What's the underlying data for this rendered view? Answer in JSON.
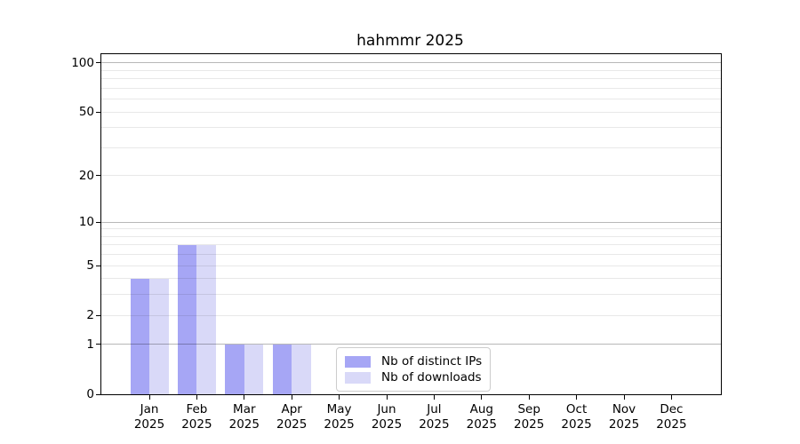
{
  "chart_data": {
    "type": "bar",
    "title": "hahmmr 2025",
    "categories": [
      "Jan",
      "Feb",
      "Mar",
      "Apr",
      "May",
      "Jun",
      "Jul",
      "Aug",
      "Sep",
      "Oct",
      "Nov",
      "Dec"
    ],
    "x_year_label": "2025",
    "series": [
      {
        "name": "Nb of distinct IPs",
        "color": "#a6a6f5",
        "values": [
          4,
          7,
          1,
          1,
          0,
          0,
          0,
          0,
          0,
          0,
          0,
          0
        ]
      },
      {
        "name": "Nb of downloads",
        "color": "#d9d9f8",
        "values": [
          4,
          7,
          1,
          1,
          0,
          0,
          0,
          0,
          0,
          0,
          0,
          0
        ]
      }
    ],
    "yscale": "log1p",
    "yticks": [
      0,
      1,
      2,
      5,
      10,
      20,
      50,
      100
    ],
    "minor_gridlines": [
      3,
      4,
      6,
      7,
      8,
      9,
      30,
      40,
      60,
      70,
      80,
      90
    ],
    "ylim": [
      0,
      100
    ],
    "xlabel": "",
    "ylabel": "",
    "grid": true,
    "legend_position": "lower center",
    "colors": {
      "decade_gridline": "#b8b8b8",
      "minor_gridline": "#e8e8e8",
      "spine": "#000000",
      "background": "#ffffff"
    }
  }
}
